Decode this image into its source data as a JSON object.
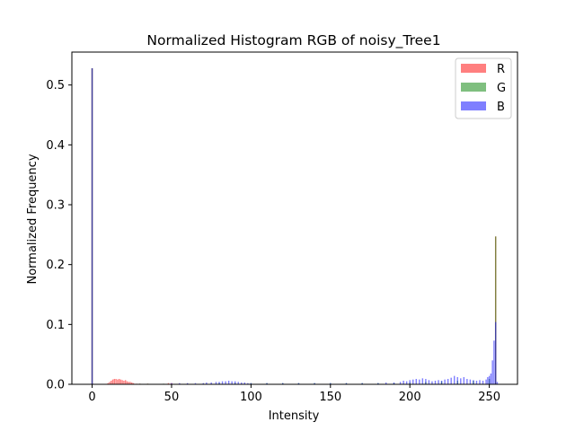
{
  "chart_data": {
    "type": "bar",
    "title": "Normalized Histogram RGB of noisy_Tree1",
    "xlabel": "Intensity",
    "ylabel": "Normalized Frequency",
    "xlim": [
      -12.75,
      267.75
    ],
    "ylim": [
      0,
      0.555
    ],
    "xticks": [
      0,
      50,
      100,
      150,
      200,
      250
    ],
    "yticks": [
      0.0,
      0.1,
      0.2,
      0.3,
      0.4,
      0.5
    ],
    "ytick_labels": [
      "0.0",
      "0.1",
      "0.2",
      "0.3",
      "0.4",
      "0.5"
    ],
    "grid": false,
    "legend_position": "top-right",
    "series": [
      {
        "name": "R",
        "color": "#ff0000",
        "alpha": 0.5,
        "points": [
          [
            0,
            0.528
          ],
          [
            10,
            0.002
          ],
          [
            11,
            0.004
          ],
          [
            12,
            0.006
          ],
          [
            13,
            0.008
          ],
          [
            14,
            0.009
          ],
          [
            15,
            0.009
          ],
          [
            16,
            0.008
          ],
          [
            17,
            0.009
          ],
          [
            18,
            0.008
          ],
          [
            19,
            0.007
          ],
          [
            20,
            0.006
          ],
          [
            21,
            0.007
          ],
          [
            22,
            0.005
          ],
          [
            23,
            0.004
          ],
          [
            24,
            0.004
          ],
          [
            25,
            0.003
          ],
          [
            26,
            0.002
          ],
          [
            28,
            0.001
          ],
          [
            30,
            0.001
          ],
          [
            35,
            0.001
          ],
          [
            48,
            0.002
          ],
          [
            50,
            0.002
          ],
          [
            55,
            0.001
          ],
          [
            60,
            0.001
          ],
          [
            254,
            0.247
          ]
        ]
      },
      {
        "name": "G",
        "color": "#008000",
        "alpha": 0.5,
        "points": [
          [
            0,
            0.528
          ],
          [
            30,
            0.001
          ],
          [
            35,
            0.001
          ],
          [
            45,
            0.001
          ],
          [
            60,
            0.001
          ],
          [
            70,
            0.001
          ],
          [
            80,
            0.002
          ],
          [
            90,
            0.002
          ],
          [
            100,
            0.002
          ],
          [
            110,
            0.002
          ],
          [
            120,
            0.002
          ],
          [
            130,
            0.002
          ],
          [
            140,
            0.002
          ],
          [
            150,
            0.002
          ],
          [
            160,
            0.002
          ],
          [
            170,
            0.002
          ],
          [
            180,
            0.002
          ],
          [
            190,
            0.002
          ],
          [
            200,
            0.003
          ],
          [
            210,
            0.004
          ],
          [
            220,
            0.005
          ],
          [
            230,
            0.006
          ],
          [
            240,
            0.006
          ],
          [
            250,
            0.009
          ],
          [
            254,
            0.247
          ]
        ]
      },
      {
        "name": "B",
        "color": "#0000ff",
        "alpha": 0.5,
        "points": [
          [
            0,
            0.528
          ],
          [
            50,
            0.002
          ],
          [
            55,
            0.002
          ],
          [
            60,
            0.002
          ],
          [
            65,
            0.002
          ],
          [
            70,
            0.002
          ],
          [
            72,
            0.003
          ],
          [
            75,
            0.003
          ],
          [
            78,
            0.004
          ],
          [
            80,
            0.004
          ],
          [
            82,
            0.005
          ],
          [
            84,
            0.005
          ],
          [
            86,
            0.006
          ],
          [
            88,
            0.005
          ],
          [
            90,
            0.005
          ],
          [
            92,
            0.004
          ],
          [
            94,
            0.003
          ],
          [
            96,
            0.003
          ],
          [
            98,
            0.002
          ],
          [
            100,
            0.002
          ],
          [
            110,
            0.002
          ],
          [
            120,
            0.002
          ],
          [
            130,
            0.002
          ],
          [
            140,
            0.002
          ],
          [
            150,
            0.002
          ],
          [
            160,
            0.002
          ],
          [
            170,
            0.002
          ],
          [
            180,
            0.002
          ],
          [
            185,
            0.003
          ],
          [
            190,
            0.003
          ],
          [
            194,
            0.004
          ],
          [
            196,
            0.006
          ],
          [
            198,
            0.005
          ],
          [
            200,
            0.007
          ],
          [
            202,
            0.008
          ],
          [
            204,
            0.009
          ],
          [
            206,
            0.008
          ],
          [
            208,
            0.01
          ],
          [
            210,
            0.009
          ],
          [
            212,
            0.007
          ],
          [
            214,
            0.005
          ],
          [
            216,
            0.006
          ],
          [
            218,
            0.007
          ],
          [
            220,
            0.006
          ],
          [
            222,
            0.008
          ],
          [
            224,
            0.009
          ],
          [
            226,
            0.011
          ],
          [
            228,
            0.014
          ],
          [
            230,
            0.012
          ],
          [
            232,
            0.01
          ],
          [
            234,
            0.012
          ],
          [
            236,
            0.009
          ],
          [
            238,
            0.008
          ],
          [
            240,
            0.007
          ],
          [
            242,
            0.006
          ],
          [
            244,
            0.007
          ],
          [
            246,
            0.006
          ],
          [
            248,
            0.008
          ],
          [
            249,
            0.012
          ],
          [
            250,
            0.014
          ],
          [
            251,
            0.018
          ],
          [
            252,
            0.04
          ],
          [
            253,
            0.073
          ],
          [
            254,
            0.104
          ],
          [
            255,
            0.004
          ]
        ]
      }
    ]
  }
}
